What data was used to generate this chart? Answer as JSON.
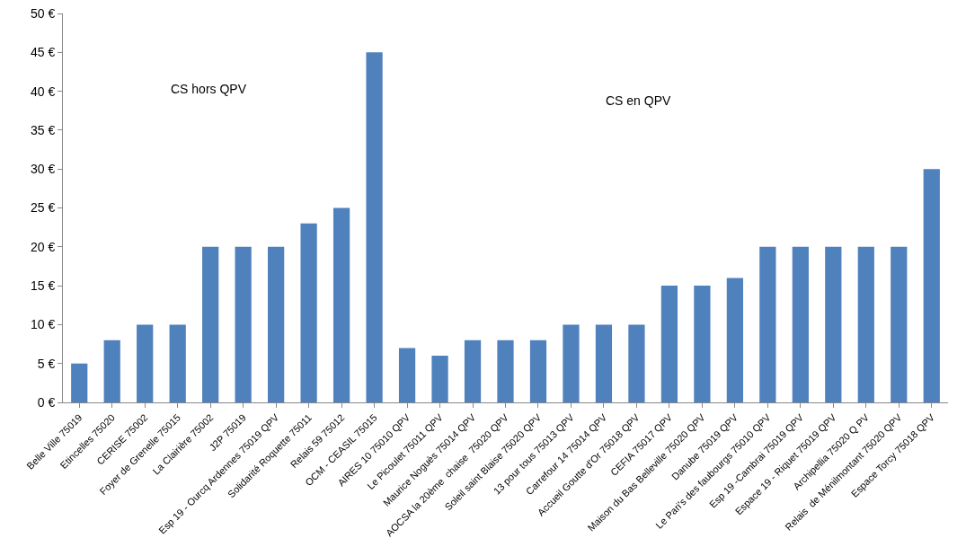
{
  "chart_data": {
    "type": "bar",
    "categories": [
      "Belle Ville 75019",
      "Etincelles 75020",
      "CERISE 75002",
      "Foyer de Grenelle 75015",
      "La Clairière 75002",
      "J2P 75019",
      "Esp 19 - Ourcq Ardennes 75019 QPV",
      "Solidarité Roquette 75011",
      "Relais 59 75012",
      "OCM - CEASIL 75015",
      "AIRES 10 75010 QPV",
      "Le Picoulet 75011 QPV",
      "Maurice Noguès 75014 QPV",
      "AOCSA la 20ème  chaise  75020 QPV",
      "Soleil saint Blaise 75020 QPV",
      "13 pour tous 75013 QPV",
      "Carrefour 14 75014 QPV",
      "Accueil Goutte d'Or 75018 QPV",
      "CEFIA 75017 QPV",
      "Maison du Bas Belleville 75020 QPV",
      "Danube 75019 QPV",
      "Le Pari's des faubourgs 75010 QPV",
      "Esp 19 -Cambrai 75019 QPV",
      "Espace 19 - Riquet 75019 QPV",
      "Archipellia 75020 Q PV",
      "Relais  de Ménilmontant 75020 QPV",
      "Espace Torcy 75018 QPV"
    ],
    "values": [
      5,
      8,
      10,
      10,
      20,
      20,
      20,
      23,
      25,
      45,
      7,
      6,
      8,
      8,
      8,
      10,
      10,
      10,
      15,
      15,
      16,
      20,
      20,
      20,
      20,
      20,
      30
    ],
    "color": "#4f81bd",
    "ylim": [
      0,
      50
    ],
    "yticks": [
      {
        "value": 0,
        "label": "0 €"
      },
      {
        "value": 5,
        "label": "5 €"
      },
      {
        "value": 10,
        "label": "10 €"
      },
      {
        "value": 15,
        "label": "15 €"
      },
      {
        "value": 20,
        "label": "20 €"
      },
      {
        "value": 25,
        "label": "25 €"
      },
      {
        "value": 30,
        "label": "30 €"
      },
      {
        "value": 35,
        "label": "35 €"
      },
      {
        "value": 40,
        "label": "40 €"
      },
      {
        "value": 45,
        "label": "45 €"
      },
      {
        "value": 50,
        "label": "50 €"
      }
    ],
    "legend": false,
    "annotations": [
      "CS hors QPV",
      "CS en QPV"
    ]
  }
}
